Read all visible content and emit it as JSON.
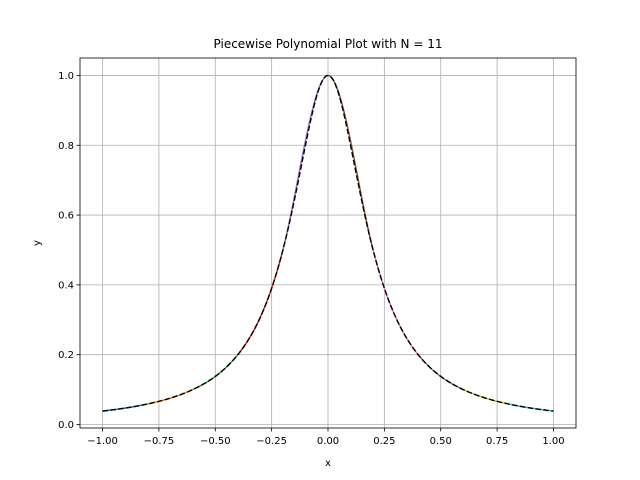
{
  "chart_data": {
    "type": "line",
    "title": "Piecewise Polynomial Plot with N = 11",
    "xlabel": "x",
    "ylabel": "y",
    "xlim": [
      -1.1,
      1.1
    ],
    "ylim": [
      -0.01,
      1.05
    ],
    "xticks": [
      -1.0,
      -0.75,
      -0.5,
      -0.25,
      0.0,
      0.25,
      0.5,
      0.75,
      1.0
    ],
    "xtick_labels": [
      "−1.00",
      "−0.75",
      "−0.50",
      "−0.25",
      "0.00",
      "0.25",
      "0.50",
      "0.75",
      "1.00"
    ],
    "yticks": [
      0.0,
      0.2,
      0.4,
      0.6,
      0.8,
      1.0
    ],
    "ytick_labels": [
      "0.0",
      "0.2",
      "0.4",
      "0.6",
      "0.8",
      "1.0"
    ],
    "grid": true,
    "function": "1/(1+25x^2)",
    "nodes": [
      -1.0,
      -0.8,
      -0.6,
      -0.4,
      -0.2,
      0.0,
      0.2,
      0.4,
      0.6,
      0.8,
      1.0
    ],
    "series": [
      {
        "style": "dashed",
        "color": "#000000"
      },
      {
        "segment": [
          -1.0,
          -0.8
        ],
        "color": "#1f77b4"
      },
      {
        "segment": [
          -0.8,
          -0.6
        ],
        "color": "#ff7f0e"
      },
      {
        "segment": [
          -0.6,
          -0.4
        ],
        "color": "#2ca02c"
      },
      {
        "segment": [
          -0.4,
          -0.2
        ],
        "color": "#d62728"
      },
      {
        "segment": [
          -0.2,
          0.0
        ],
        "color": "#9467bd"
      },
      {
        "segment": [
          0.0,
          0.2
        ],
        "color": "#8c564b"
      },
      {
        "segment": [
          0.2,
          0.4
        ],
        "color": "#e377c2"
      },
      {
        "segment": [
          0.4,
          0.6
        ],
        "color": "#7f7f7f"
      },
      {
        "segment": [
          0.6,
          0.8
        ],
        "color": "#bcbd22"
      },
      {
        "segment": [
          0.8,
          1.0
        ],
        "color": "#17becf"
      }
    ]
  }
}
